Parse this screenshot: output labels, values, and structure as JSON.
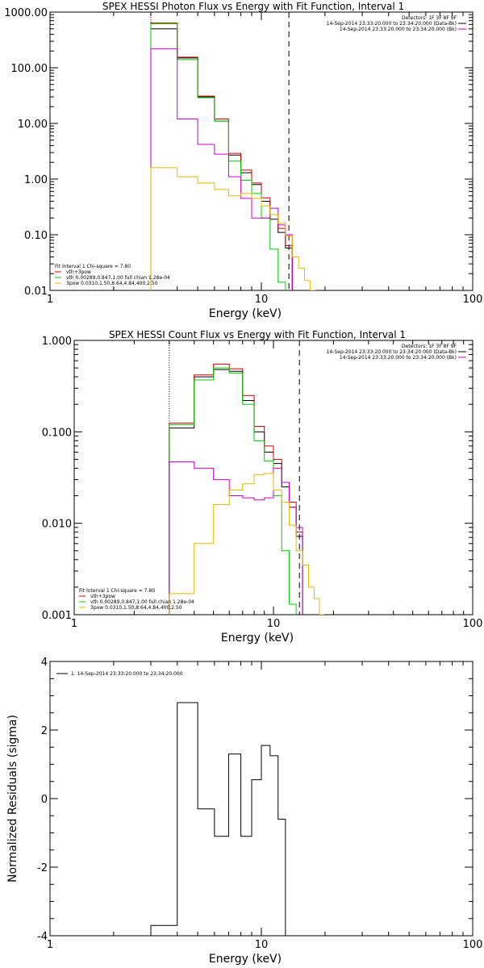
{
  "chart_data": [
    {
      "type": "line",
      "title": "SPEX HESSI Photon Flux vs Energy with Fit Function, Interval 1",
      "xlabel": "Energy (keV)",
      "ylabel": "",
      "xscale": "log",
      "yscale": "log",
      "xlim": [
        1,
        100
      ],
      "ylim": [
        0.01,
        1000
      ],
      "xticks": [
        {
          "v": 1,
          "label": "1"
        },
        {
          "v": 10,
          "label": "10"
        },
        {
          "v": 100,
          "label": "100"
        }
      ],
      "yticks": [
        {
          "v": 0.01,
          "label": "0.01"
        },
        {
          "v": 0.1,
          "label": "0.10"
        },
        {
          "v": 1,
          "label": "1.00"
        },
        {
          "v": 10,
          "label": "10.00"
        },
        {
          "v": 100,
          "label": "100.00"
        },
        {
          "v": 1000,
          "label": "1000.00"
        }
      ],
      "vlines": [
        {
          "x": 3.0,
          "style": "dotted"
        },
        {
          "x": 13.5,
          "style": "dashed"
        }
      ],
      "legend_right": {
        "header": "Detectors: 1F 3F 8F 9F",
        "lines": [
          {
            "text": "14-Sep-2014 23:33:20.000 to 23:34:20.000 (Data-Bk)",
            "color": "#000000"
          },
          {
            "text": "14-Sep-2014 23:33:20.000 to 23:34:20.000 (Bk)",
            "color": "#cc00cc"
          }
        ]
      },
      "legend_left": {
        "header": "Fit Interval 1   Chi-square = 7.80",
        "lines": [
          {
            "text": "vth+3pow",
            "color": "#cc0000"
          },
          {
            "text": "vth 0.00289,0.847,1.00  full chian 1.28e-04",
            "color": "#00cc00"
          },
          {
            "text": "3pow 0.0310,1.50,8.64,4.84,400,2.50",
            "color": "#e6b800"
          }
        ]
      },
      "edges": [
        3.0,
        4.0,
        5.0,
        6.0,
        7.0,
        8.0,
        9.0,
        10.0,
        11.0,
        12.0,
        13.0,
        14.0,
        15.0,
        16.0,
        17.0,
        18.0,
        19.0,
        20.0
      ],
      "series": [
        {
          "color": "#000000",
          "values": [
            500,
            150,
            30,
            11,
            2.7,
            1.3,
            0.8,
            0.4,
            0.19,
            0.11,
            0.058,
            null,
            null,
            null,
            null,
            null,
            null
          ]
        },
        {
          "color": "#cc0000",
          "values": [
            640,
            155,
            31,
            12,
            2.9,
            1.45,
            0.85,
            0.46,
            0.23,
            0.13,
            0.064,
            null,
            null,
            null,
            null,
            null,
            null
          ]
        },
        {
          "color": "#00cc00",
          "values": [
            620,
            140,
            29,
            11,
            2.1,
            0.95,
            0.55,
            0.2,
            0.055,
            0.014,
            null,
            null,
            null,
            null,
            null,
            null,
            null
          ]
        },
        {
          "color": "#cc00cc",
          "values": [
            220,
            12,
            4.2,
            2.8,
            1.1,
            0.45,
            0.2,
            0.2,
            0.3,
            0.15,
            0.1,
            null,
            null,
            null,
            null,
            null,
            null
          ]
        },
        {
          "color": "#e6b800",
          "values": [
            1.6,
            1.1,
            0.85,
            0.65,
            0.5,
            0.55,
            0.45,
            0.33,
            0.23,
            0.16,
            0.095,
            0.04,
            0.025,
            0.015,
            0.01,
            null,
            null
          ]
        }
      ]
    },
    {
      "type": "line",
      "title": "SPEX HESSI Count Flux vs Energy with Fit Function, Interval 1",
      "xlabel": "Energy (keV)",
      "ylabel": "",
      "xscale": "log",
      "yscale": "log",
      "xlim": [
        1,
        100
      ],
      "ylim": [
        0.001,
        1
      ],
      "xticks": [
        {
          "v": 1,
          "label": "1"
        },
        {
          "v": 10,
          "label": "10"
        },
        {
          "v": 100,
          "label": "100"
        }
      ],
      "yticks": [
        {
          "v": 0.001,
          "label": "0.001"
        },
        {
          "v": 0.01,
          "label": "0.010"
        },
        {
          "v": 0.1,
          "label": "0.100"
        },
        {
          "v": 1,
          "label": "1.000"
        }
      ],
      "vlines": [
        {
          "x": 3.0,
          "style": "dotted"
        },
        {
          "x": 13.5,
          "style": "dashed"
        }
      ],
      "legend_right": {
        "header": "Detectors: 1F 3F 8F 9F",
        "lines": [
          {
            "text": "14-Sep-2014 23:33:20.000 to 23:34:20.000 (Data-Bk)",
            "color": "#000000"
          },
          {
            "text": "14-Sep-2014 23:33:20.000 to 23:34:20.000 (Bk)",
            "color": "#cc00cc"
          }
        ]
      },
      "legend_left": {
        "header": "Fit Interval 1   Chi-square = 7.80",
        "lines": [
          {
            "text": "vth+3pow",
            "color": "#cc0000"
          },
          {
            "text": "vth 0.00289,0.847,1.00  full chian 1.28e-04",
            "color": "#00cc00"
          },
          {
            "text": "3pow 0.0310,1.50,8.64,4.84,400,2.50",
            "color": "#e6b800"
          }
        ]
      },
      "edges": [
        3.0,
        4.0,
        5.0,
        6.0,
        7.0,
        8.0,
        9.0,
        10.0,
        11.0,
        12.0,
        13.0,
        14.0,
        15.0,
        16.0,
        17.0,
        18.0,
        19.0,
        20.0
      ],
      "series": [
        {
          "color": "#000000",
          "values": [
            0.11,
            0.4,
            0.48,
            0.46,
            0.22,
            0.1,
            0.06,
            0.045,
            0.025,
            0.015,
            0.0072,
            null,
            null,
            null,
            null,
            null,
            null
          ]
        },
        {
          "color": "#cc0000",
          "values": [
            0.125,
            0.42,
            0.55,
            0.49,
            0.25,
            0.115,
            0.07,
            0.05,
            0.028,
            0.017,
            0.008,
            null,
            null,
            null,
            null,
            null,
            null
          ]
        },
        {
          "color": "#00cc00",
          "values": [
            0.12,
            0.37,
            0.5,
            0.44,
            0.2,
            0.08,
            0.048,
            0.02,
            0.005,
            0.0013,
            null,
            null,
            null,
            null,
            null,
            null,
            null
          ]
        },
        {
          "color": "#cc00cc",
          "values": [
            0.047,
            0.04,
            0.03,
            0.02,
            0.019,
            0.018,
            0.019,
            0.04,
            0.028,
            0.015,
            0.009,
            null,
            null,
            null,
            null,
            null,
            null
          ]
        },
        {
          "color": "#e6b800",
          "values": [
            0.0017,
            0.006,
            0.016,
            0.023,
            0.027,
            0.034,
            0.035,
            0.023,
            0.017,
            0.0095,
            0.005,
            0.0035,
            0.002,
            0.0015,
            0.001,
            null,
            null
          ]
        }
      ]
    },
    {
      "type": "line",
      "title": "",
      "xlabel": "Energy (keV)",
      "ylabel": "Normalized Residuals (sigma)",
      "xscale": "log",
      "yscale": "linear",
      "xlim": [
        1,
        100
      ],
      "ylim": [
        -4,
        4
      ],
      "xticks": [
        {
          "v": 1,
          "label": "1"
        },
        {
          "v": 10,
          "label": "10"
        },
        {
          "v": 100,
          "label": "100"
        }
      ],
      "yticks": [
        {
          "v": -4,
          "label": "-4"
        },
        {
          "v": -2,
          "label": "-2"
        },
        {
          "v": 0,
          "label": "0"
        },
        {
          "v": 2,
          "label": "2"
        },
        {
          "v": 4,
          "label": "4"
        }
      ],
      "legend": {
        "text": "1. 14-Sep-2014 23:33:20.000 to 23:34:20.000",
        "color": "#000000"
      },
      "edges": [
        3.0,
        4.0,
        5.0,
        6.0,
        7.0,
        8.0,
        9.0,
        10.0,
        11.0,
        12.0,
        13.0,
        14.0
      ],
      "series": [
        {
          "color": "#000000",
          "values": [
            -3.7,
            2.8,
            -0.3,
            -1.1,
            1.3,
            -1.1,
            0.55,
            1.55,
            1.25,
            -0.6,
            -4.0
          ]
        }
      ]
    }
  ]
}
